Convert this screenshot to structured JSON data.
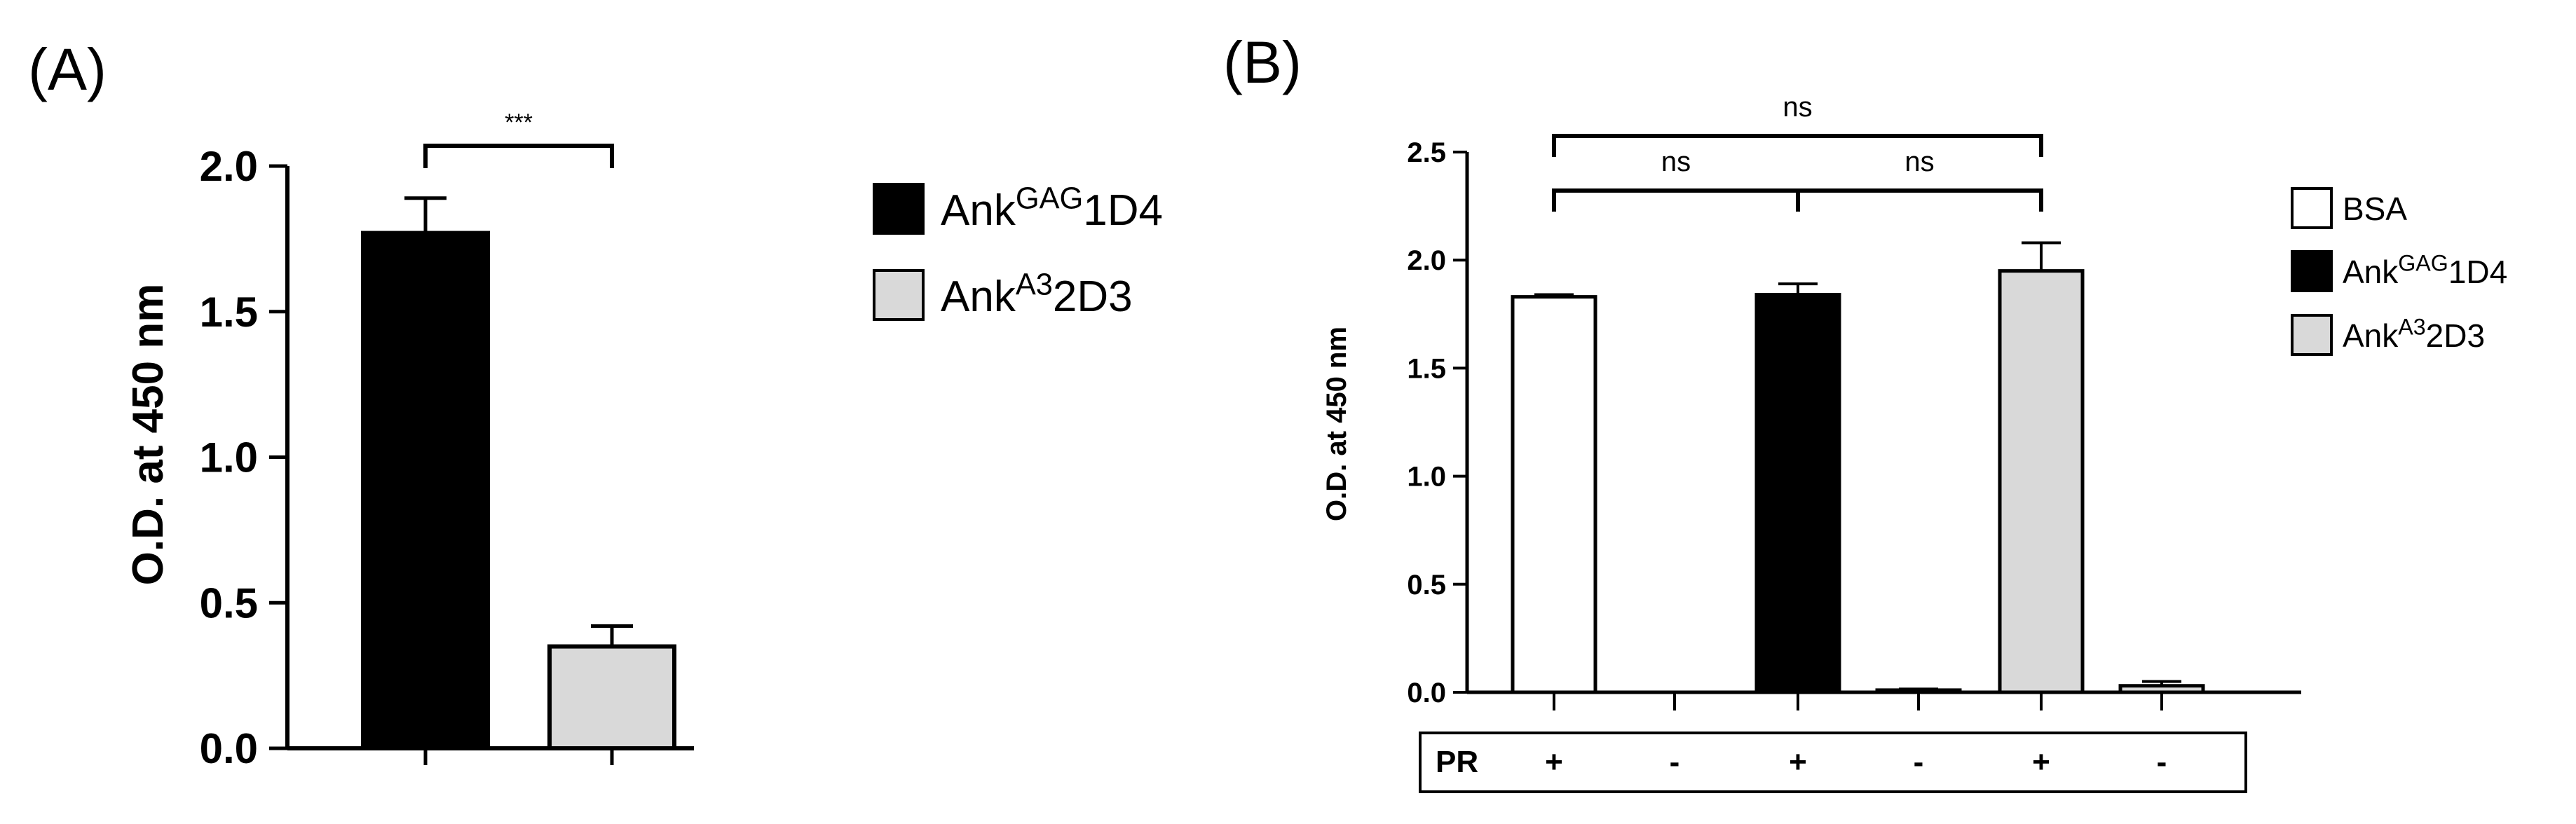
{
  "chart_data": [
    {
      "panel": "(A)",
      "type": "bar",
      "ylabel": "O.D. at 450 nm",
      "ylim": [
        0,
        2.0
      ],
      "yticks": [
        "0.0",
        "0.5",
        "1.0",
        "1.5",
        "2.0"
      ],
      "categories": [
        "Ankᴳᴬᴳ 1D4",
        "Ankᴬ³ 2D3"
      ],
      "series": [
        {
          "values": [
            1.77,
            0.35
          ],
          "errors": [
            0.12,
            0.07
          ],
          "colors": [
            "#000000",
            "#d9d9d9"
          ]
        }
      ],
      "significance": [
        {
          "from": 0,
          "to": 1,
          "label": "***"
        }
      ],
      "legend": {
        "position": "right",
        "entries": [
          {
            "base": "Ank",
            "sup": "GAG",
            "rest": "1D4",
            "color": "#000000"
          },
          {
            "base": "Ank",
            "sup": "A3",
            "rest": "2D3",
            "color": "#d9d9d9"
          }
        ]
      }
    },
    {
      "panel": "(B)",
      "type": "bar",
      "ylabel": "O.D. at 450 nm",
      "ylim": [
        0,
        2.5
      ],
      "yticks": [
        "0.0",
        "0.5",
        "1.0",
        "1.5",
        "2.0",
        "2.5"
      ],
      "pr_label": "PR",
      "pr_values": [
        "+",
        "-",
        "+",
        "-",
        "+",
        "-"
      ],
      "bars": [
        {
          "value": 1.83,
          "error": 0.01,
          "color": "#ffffff"
        },
        {
          "value": 0.0,
          "error": 0.0,
          "color": "#ffffff"
        },
        {
          "value": 1.84,
          "error": 0.05,
          "color": "#000000"
        },
        {
          "value": 0.01,
          "error": 0.005,
          "color": "#000000"
        },
        {
          "value": 1.95,
          "error": 0.13,
          "color": "#d9d9d9"
        },
        {
          "value": 0.03,
          "error": 0.02,
          "color": "#d9d9d9"
        }
      ],
      "significance": [
        {
          "from": 0,
          "to": 4,
          "label": "ns",
          "level": 2
        },
        {
          "from": 0,
          "to": 2,
          "label": "ns",
          "level": 1
        },
        {
          "from": 2,
          "to": 4,
          "label": "ns",
          "level": 1
        }
      ],
      "legend": {
        "position": "right",
        "entries": [
          {
            "base": "BSA",
            "sup": "",
            "rest": "",
            "color": "#ffffff"
          },
          {
            "base": "Ank",
            "sup": "GAG",
            "rest": "1D4",
            "color": "#000000"
          },
          {
            "base": "Ank",
            "sup": "A3",
            "rest": "2D3",
            "color": "#d9d9d9"
          }
        ]
      }
    }
  ]
}
